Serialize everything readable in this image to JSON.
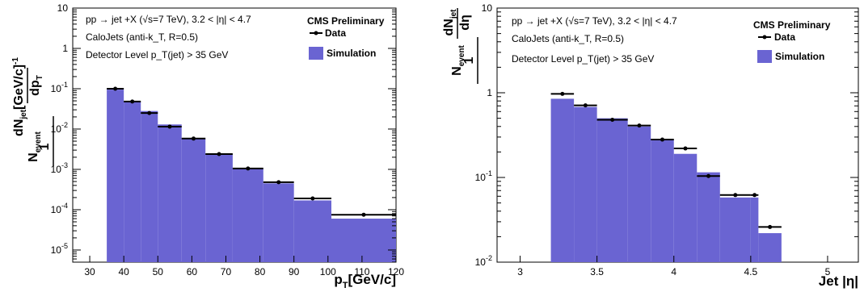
{
  "colors": {
    "simulation_fill": "#6a64d2",
    "axis": "#000000",
    "data": "#000000"
  },
  "chart_data": [
    {
      "type": "bar",
      "y_scale": "log",
      "ylim": [
        5e-06,
        10
      ],
      "xlim": [
        25,
        120
      ],
      "x_ticks": [
        "30",
        "40",
        "50",
        "60",
        "70",
        "80",
        "90",
        "100",
        "110",
        "120"
      ],
      "y_ticks": [
        "10",
        "1",
        "10-1",
        "10-2",
        "10-3",
        "10-4",
        "10-5"
      ],
      "ylabel": "1/N_event dN_jet/dp_T [GeV/c]^-1",
      "xlabel": "p_T [GeV/c]",
      "annotations": {
        "process": "pp → jet +X (√s=7 TeV), 3.2 < |η| < 4.7",
        "jets": "CaloJets (anti-k_T, R=0.5)",
        "cut": "Detector Level p_T(jet) > 35 GeV"
      },
      "legend": {
        "title": "CMS Preliminary",
        "entries": [
          "Data",
          "Simulation"
        ],
        "placement": "top-right"
      },
      "bin_edges": [
        35,
        40,
        45,
        50,
        57,
        64,
        72,
        81,
        90,
        101,
        120
      ],
      "series": [
        {
          "name": "Simulation",
          "values": [
            0.095,
            0.048,
            0.028,
            0.013,
            0.0058,
            0.0024,
            0.00105,
            0.00045,
            0.00017,
            6e-05
          ]
        },
        {
          "name": "Data",
          "values": [
            0.1,
            0.048,
            0.025,
            0.0115,
            0.0058,
            0.0024,
            0.00105,
            0.00048,
            0.00019,
            7.5e-05
          ]
        }
      ]
    },
    {
      "type": "bar",
      "y_scale": "log",
      "ylim": [
        0.01,
        10
      ],
      "xlim": [
        2.85,
        5.2
      ],
      "x_ticks": [
        "3",
        "3.5",
        "4",
        "4.5",
        "5"
      ],
      "y_ticks": [
        "10",
        "1",
        "10-1",
        "10-2"
      ],
      "ylabel": "1/N_event dN_jet/dη",
      "xlabel": "Jet |η|",
      "annotations": {
        "process": "pp → jet +X (√s=7 TeV), 3.2 < |η| < 4.7",
        "jets": "CaloJets (anti-k_T, R=0.5)",
        "cut": "Detector Level p_T(jet) > 35 GeV"
      },
      "legend": {
        "title": "CMS Preliminary",
        "entries": [
          "Data",
          "Simulation"
        ],
        "placement": "top-right"
      },
      "bin_edges": [
        3.2,
        3.35,
        3.5,
        3.7,
        3.85,
        4.0,
        4.15,
        4.3,
        4.5,
        4.55,
        4.7
      ],
      "series": [
        {
          "name": "Simulation",
          "values": [
            0.85,
            0.68,
            0.5,
            0.4,
            0.28,
            0.19,
            0.115,
            0.058,
            0.058,
            0.022
          ]
        },
        {
          "name": "Data",
          "values": [
            0.97,
            0.71,
            0.48,
            0.41,
            0.28,
            0.22,
            0.104,
            0.062,
            0.062,
            0.026
          ]
        }
      ]
    }
  ]
}
